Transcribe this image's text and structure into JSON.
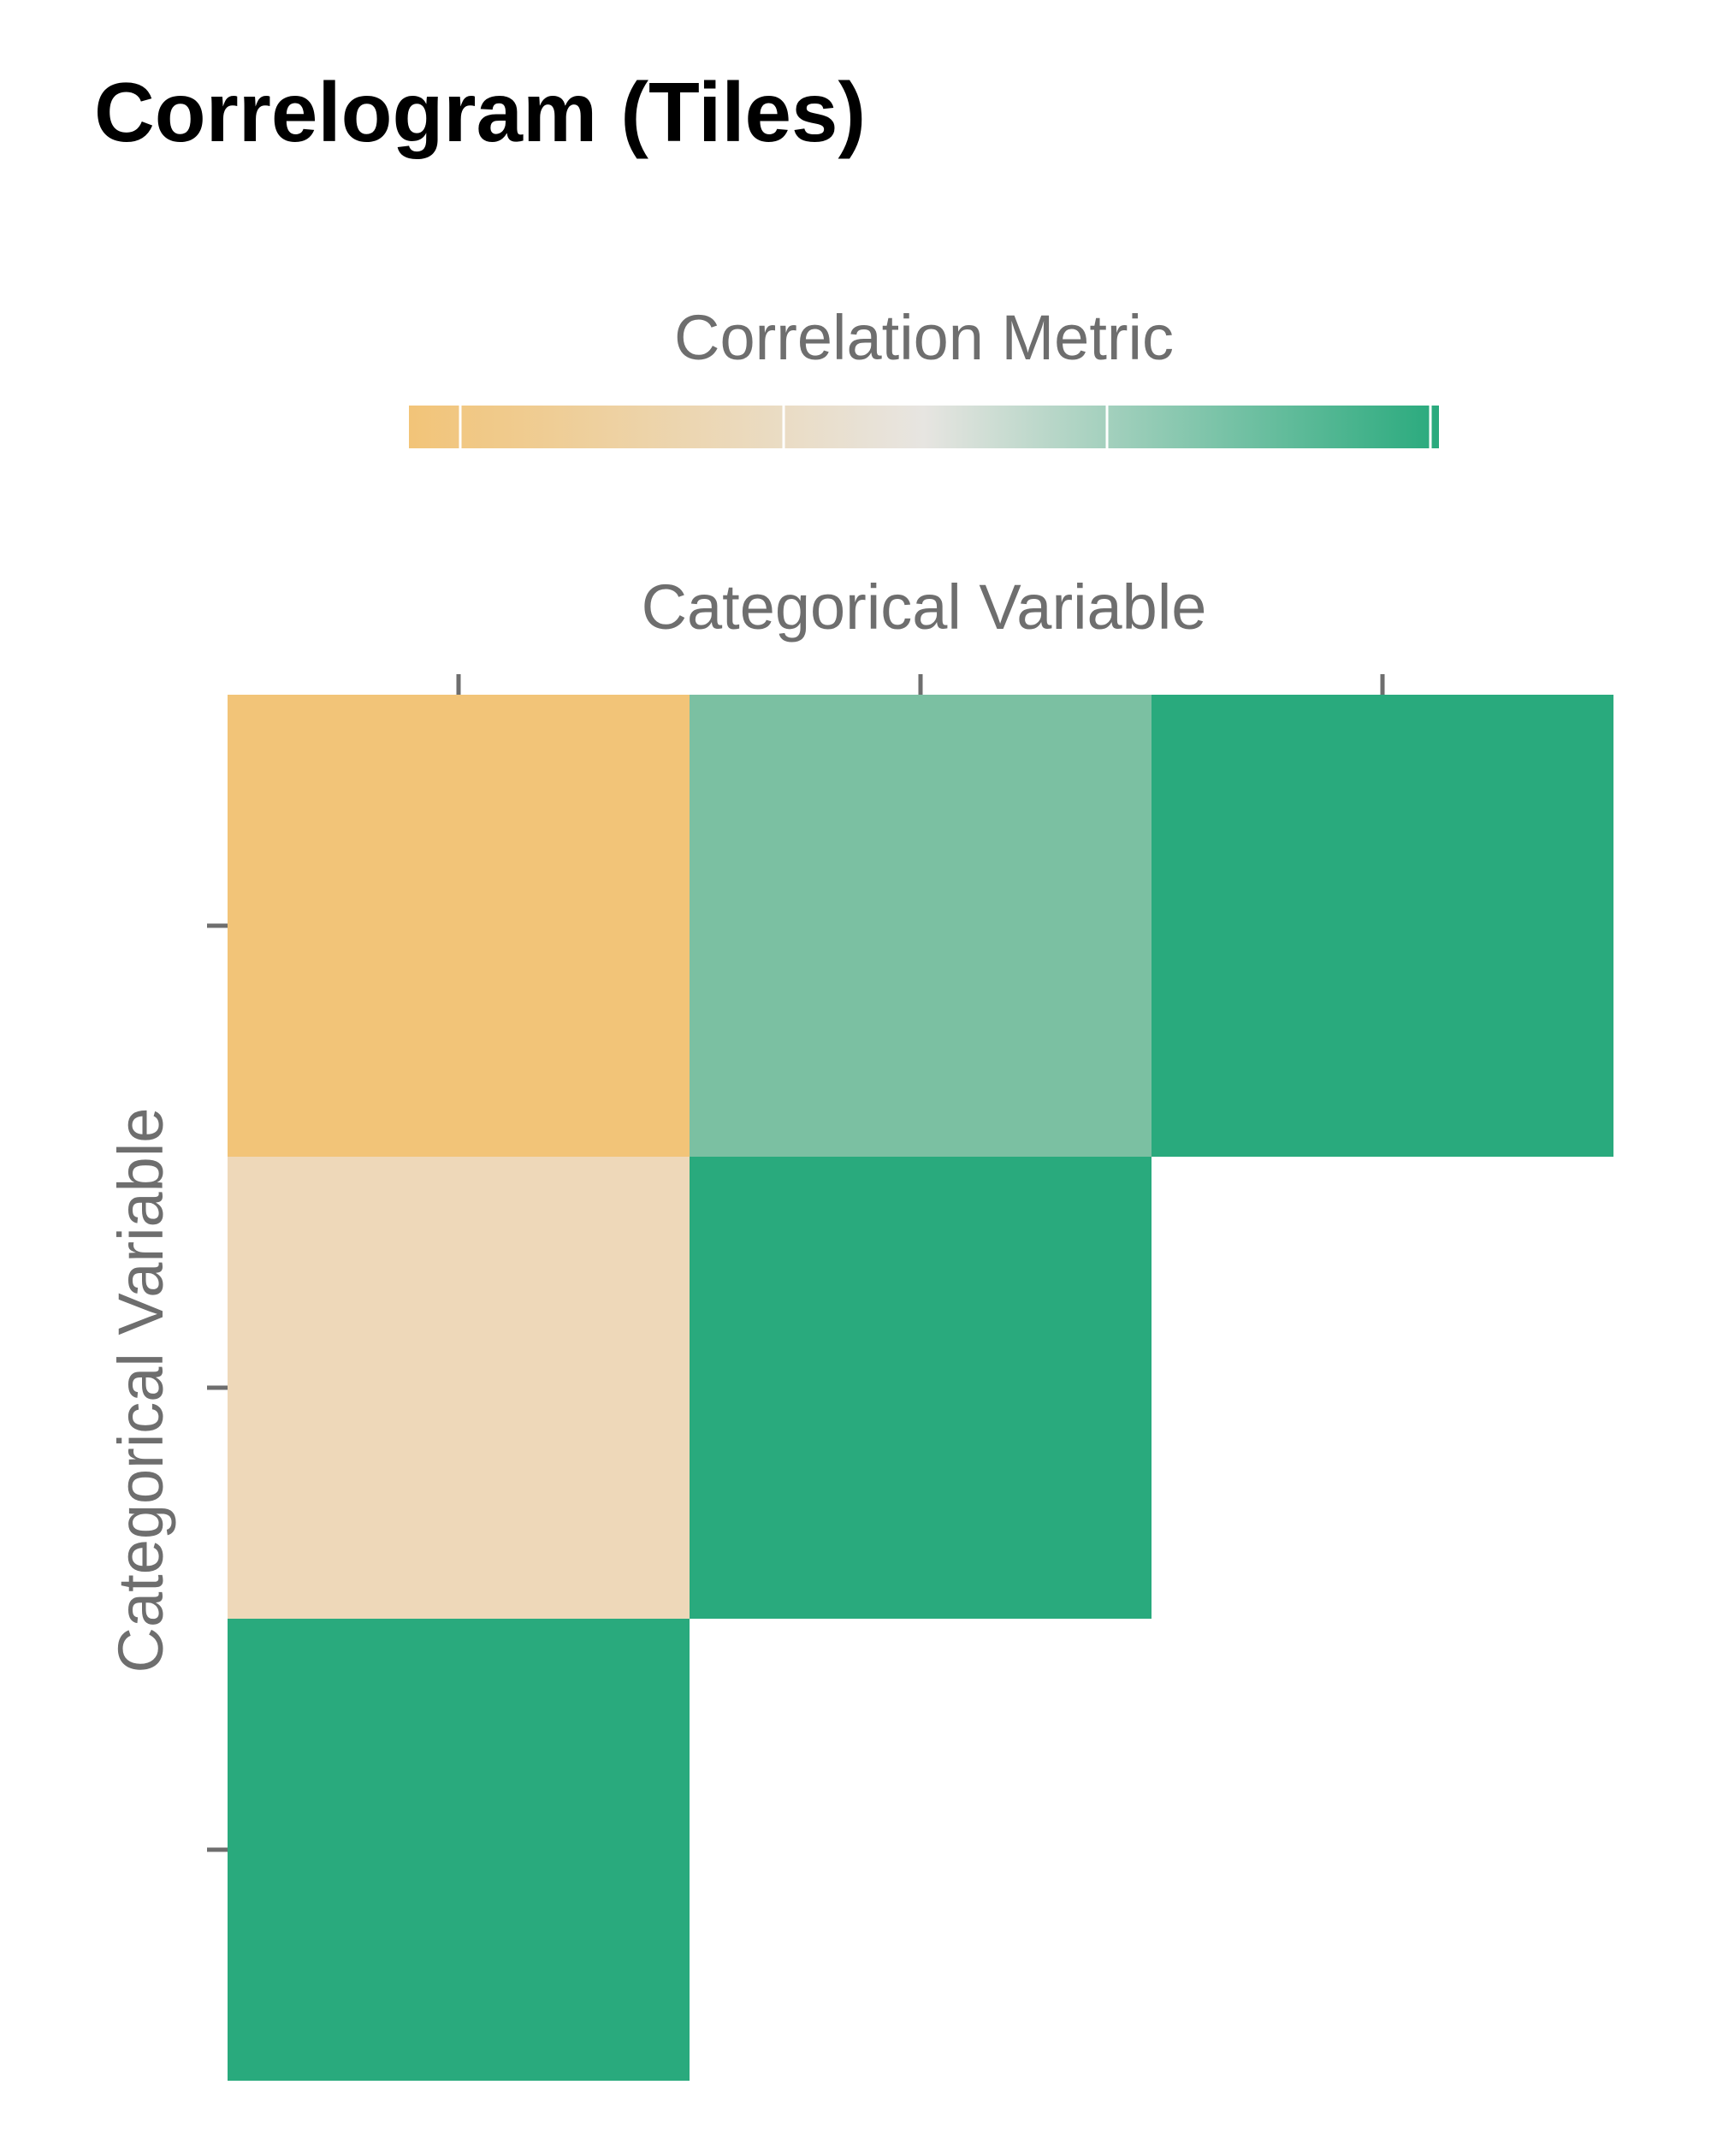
{
  "chart_data": {
    "type": "heatmap",
    "title": "Correlogram (Tiles)",
    "xlabel": "Categorical Variable",
    "ylabel": "Categorical Variable",
    "legend": {
      "title": "Correlation Metric",
      "position": "top",
      "colors": [
        "#f2c478",
        "#e7e5e1",
        "#29aa7d"
      ]
    },
    "x_categories": [
      "",
      "",
      ""
    ],
    "y_categories": [
      "",
      "",
      ""
    ],
    "cells": [
      {
        "row": 0,
        "col": 0,
        "color": "#f2c478"
      },
      {
        "row": 0,
        "col": 1,
        "color": "#7bc0a2"
      },
      {
        "row": 0,
        "col": 2,
        "color": "#29aa7d"
      },
      {
        "row": 1,
        "col": 0,
        "color": "#eed8b9"
      },
      {
        "row": 1,
        "col": 1,
        "color": "#29aa7d"
      },
      {
        "row": 2,
        "col": 0,
        "color": "#29aa7d"
      }
    ],
    "grid": false
  }
}
